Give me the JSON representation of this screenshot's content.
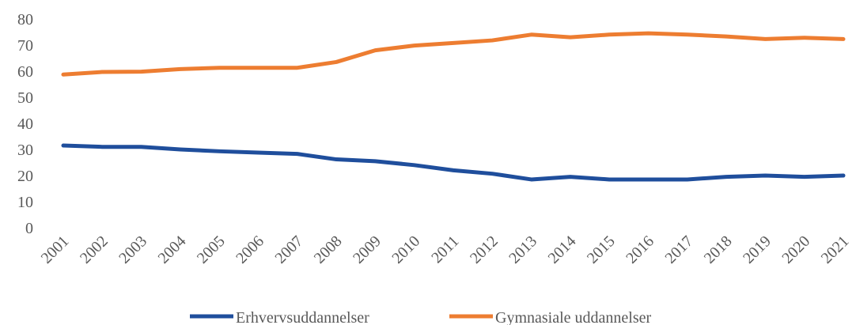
{
  "chart_data": {
    "type": "line",
    "categories": [
      "2001",
      "2002",
      "2003",
      "2004",
      "2005",
      "2006",
      "2007",
      "2008",
      "2009",
      "2010",
      "2011",
      "2012",
      "2013",
      "2014",
      "2015",
      "2016",
      "2017",
      "2018",
      "2019",
      "2020",
      "2021"
    ],
    "series": [
      {
        "name": "Erhvervsuddannelser",
        "color": "#1f4e9c",
        "values": [
          31.5,
          31,
          31,
          30,
          29.3,
          28.8,
          28.3,
          26.2,
          25.5,
          24,
          22,
          20.7,
          18.5,
          19.5,
          18.5,
          18.5,
          18.5,
          19.5,
          20,
          19.5,
          20
        ]
      },
      {
        "name": "Gymnasiale uddannelser",
        "color": "#ed7d31",
        "values": [
          58.7,
          59.7,
          59.8,
          60.8,
          61.3,
          61.3,
          61.3,
          63.5,
          68,
          69.8,
          70.8,
          71.8,
          74,
          73,
          74,
          74.5,
          74,
          73.3,
          72.3,
          72.8,
          72.3
        ]
      }
    ],
    "ylim": [
      0,
      80
    ],
    "yticks": [
      0,
      10,
      20,
      30,
      40,
      50,
      60,
      70,
      80
    ],
    "grid": false,
    "legend": "bottom"
  }
}
